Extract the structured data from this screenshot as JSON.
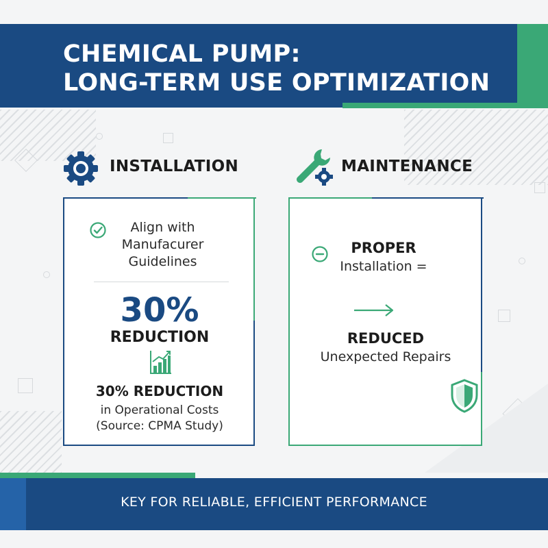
{
  "header": {
    "title_line1": "CHEMICAL PUMP:",
    "title_line2": "LONG-TERM USE OPTIMIZATION"
  },
  "installation": {
    "heading": "INSTALLATION",
    "guideline_line1": "Align with",
    "guideline_line2": "Manufacurer",
    "guideline_line3": "Guidelines",
    "big_stat": "30%",
    "big_stat_label": "REDUCTION",
    "stat_repeat": "30% REDUCTION",
    "stat_detail": "in Operational Costs",
    "source": "(Source: CPMA Study)"
  },
  "maintenance": {
    "heading": "MAINTENANCE",
    "proper": "PROPER",
    "installation_eq": "Installation =",
    "reduced": "REDUCED",
    "repairs": "Unexpected Repairs"
  },
  "footer": {
    "tagline": "KEY FOR RELIABLE, EFFICIENT PERFORMANCE"
  },
  "colors": {
    "navy": "#1a4a82",
    "green": "#3aa876"
  },
  "icons": {
    "installation": "gear-icon",
    "maintenance": "wrench-gear-icon",
    "guideline": "check-circle-icon",
    "stat": "bar-chart-growth-icon",
    "proper": "minus-circle-icon",
    "flow": "arrow-right-icon",
    "protection": "shield-icon"
  }
}
